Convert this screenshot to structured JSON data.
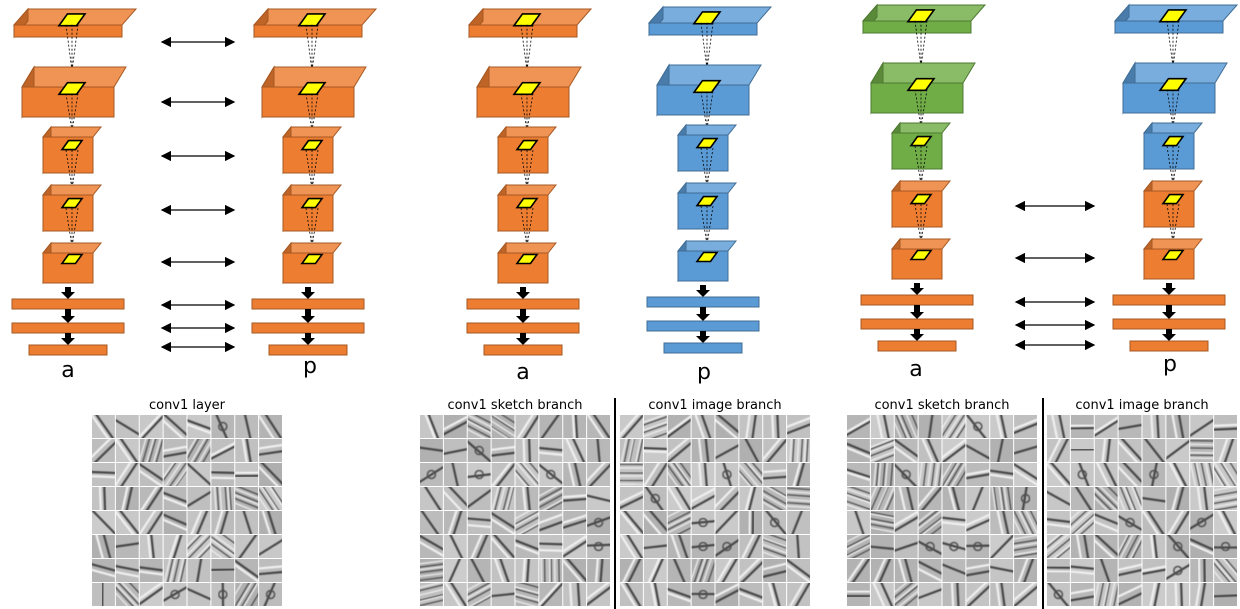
{
  "colors": {
    "orange": "#ED7D31",
    "blue": "#5B9BD5",
    "green": "#70AD47",
    "filter_window": "#FFFF00",
    "arrow": "#000000"
  },
  "figures": [
    {
      "name": "left",
      "anchor_label": "a",
      "positive_label": "p",
      "anchor_conv_color": "orange",
      "anchor_fc_color": "orange",
      "positive_conv_color": "orange",
      "positive_fc_color": "orange",
      "green_layers": 0,
      "shared_arrows": [
        "conv1",
        "conv2",
        "conv3",
        "conv4",
        "conv5",
        "fc6",
        "fc7",
        "fc8"
      ]
    },
    {
      "name": "middle",
      "anchor_label": "a",
      "positive_label": "p",
      "anchor_conv_color": "orange",
      "anchor_fc_color": "orange",
      "positive_conv_color": "blue",
      "positive_fc_color": "blue",
      "green_layers": 0,
      "shared_arrows": []
    },
    {
      "name": "right",
      "anchor_label": "a",
      "positive_label": "p",
      "anchor_conv_color": "mixed",
      "anchor_fc_color": "orange",
      "positive_conv_color": "mixed",
      "positive_fc_color": "orange",
      "green_layers": 3,
      "shared_arrows": [
        "conv4",
        "conv5",
        "fc6",
        "fc7",
        "fc8"
      ]
    }
  ],
  "captions": {
    "left": "conv1 layer",
    "middle_sketch": "conv1 sketch branch",
    "middle_image": "conv1 image branch",
    "right_sketch": "conv1 sketch branch",
    "right_image": "conv1 image branch"
  },
  "filter_grids": {
    "rows": 8,
    "cols": 8,
    "panels": [
      "left",
      "middle_sketch",
      "middle_image",
      "right_sketch",
      "right_image"
    ]
  }
}
